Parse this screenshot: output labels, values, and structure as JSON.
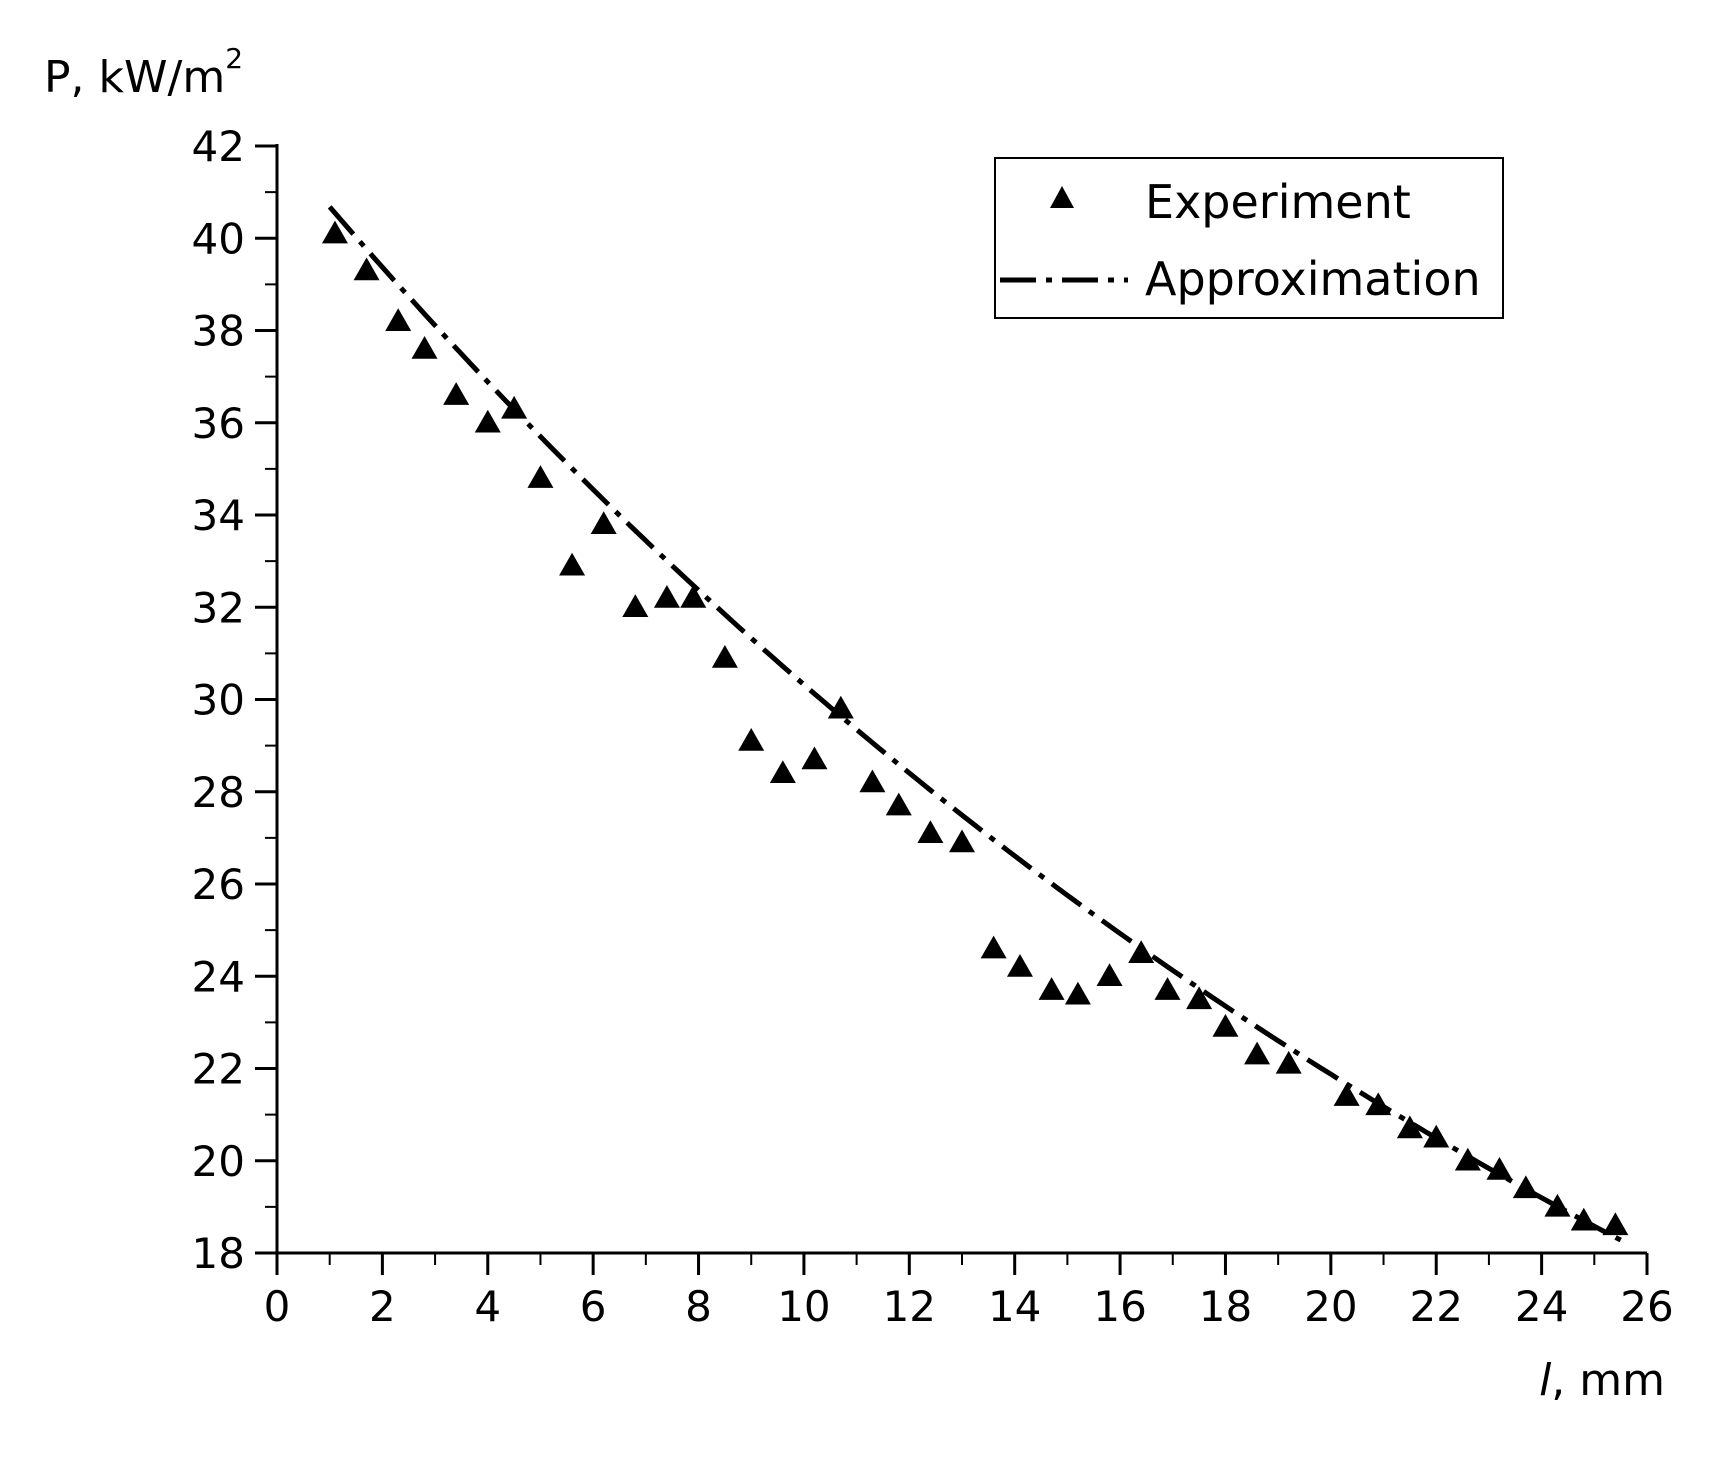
{
  "chart_data": {
    "type": "scatter",
    "ylabel": "P, kW/m",
    "ylabel_sup": "2",
    "xlabel_italic": "l",
    "xlabel_rest": ", mm",
    "xlim": [
      0,
      26
    ],
    "ylim": [
      18,
      42
    ],
    "x_ticks": [
      0,
      2,
      4,
      6,
      8,
      10,
      12,
      14,
      16,
      18,
      20,
      22,
      24,
      26
    ],
    "y_ticks": [
      18,
      20,
      22,
      24,
      26,
      28,
      30,
      32,
      34,
      36,
      38,
      40,
      42
    ],
    "grid": false,
    "legend_position": "top-right",
    "series": [
      {
        "name": "Experiment",
        "style": "triangle-markers",
        "color": "#000000",
        "points": [
          [
            1.1,
            40.1
          ],
          [
            1.7,
            39.3
          ],
          [
            2.3,
            38.2
          ],
          [
            2.8,
            37.6
          ],
          [
            3.4,
            36.6
          ],
          [
            4.0,
            36.0
          ],
          [
            4.5,
            36.3
          ],
          [
            5.0,
            34.8
          ],
          [
            5.6,
            32.9
          ],
          [
            6.2,
            33.8
          ],
          [
            6.8,
            32.0
          ],
          [
            7.4,
            32.2
          ],
          [
            7.9,
            32.2
          ],
          [
            8.5,
            30.9
          ],
          [
            9.0,
            29.1
          ],
          [
            9.6,
            28.4
          ],
          [
            10.2,
            28.7
          ],
          [
            10.7,
            29.8
          ],
          [
            11.3,
            28.2
          ],
          [
            11.8,
            27.7
          ],
          [
            12.4,
            27.1
          ],
          [
            13.0,
            26.9
          ],
          [
            13.6,
            24.6
          ],
          [
            14.1,
            24.2
          ],
          [
            14.7,
            23.7
          ],
          [
            15.2,
            23.6
          ],
          [
            15.8,
            24.0
          ],
          [
            16.4,
            24.5
          ],
          [
            16.9,
            23.7
          ],
          [
            17.5,
            23.5
          ],
          [
            18.0,
            22.9
          ],
          [
            18.6,
            22.3
          ],
          [
            19.2,
            22.1
          ],
          [
            20.3,
            21.4
          ],
          [
            20.9,
            21.2
          ],
          [
            21.5,
            20.7
          ],
          [
            22.0,
            20.5
          ],
          [
            22.6,
            20.0
          ],
          [
            23.2,
            19.8
          ],
          [
            23.7,
            19.4
          ],
          [
            24.3,
            19.0
          ],
          [
            24.8,
            18.7
          ],
          [
            25.4,
            18.6
          ]
        ]
      },
      {
        "name": "Approximation",
        "style": "dash-dot-line",
        "color": "#000000",
        "fit": {
          "form": "P = a * exp(-b * l)",
          "a": 42.03,
          "b": 0.03265
        },
        "x_range": [
          1.0,
          25.5
        ]
      }
    ]
  }
}
